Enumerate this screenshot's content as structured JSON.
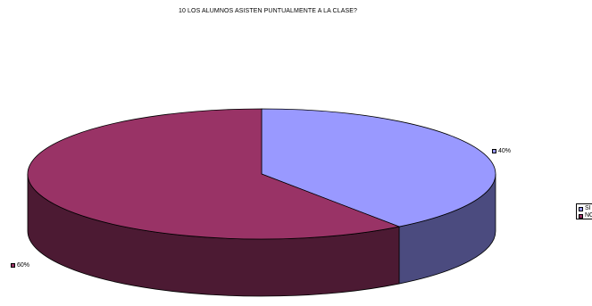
{
  "chart_data": {
    "type": "pie",
    "title": "10 LOS ALUMNOS ASISTEN PUNTUALMENTE A LA CLASE?",
    "labels": [
      "SI",
      "NO"
    ],
    "values": [
      40,
      60
    ],
    "data_labels": [
      "40%",
      "60%"
    ],
    "colors": {
      "SI": {
        "top": "#9999ff",
        "side": "#4b4b7f"
      },
      "NO": {
        "top": "#993366",
        "side": "#4c1a33"
      }
    },
    "legend_position": "right",
    "style": "3d"
  }
}
